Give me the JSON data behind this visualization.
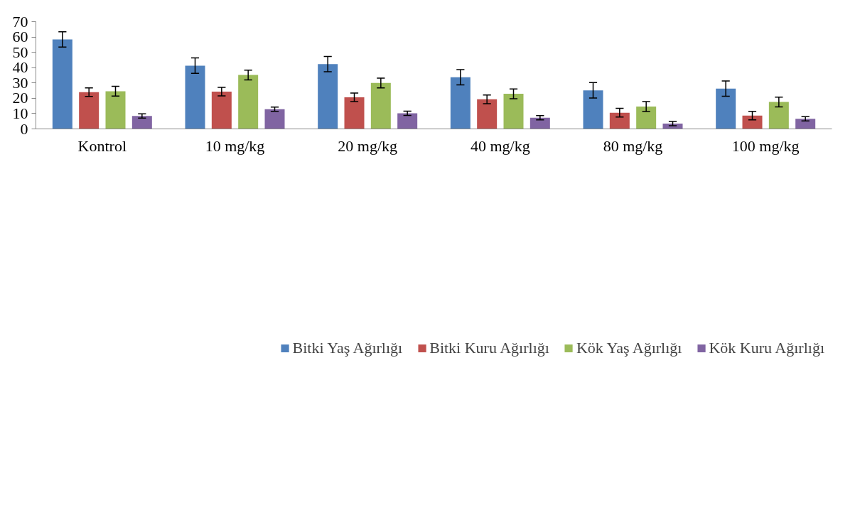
{
  "chart_data": {
    "type": "bar",
    "categories": [
      "Kontrol",
      "10 mg/kg",
      "20 mg/kg",
      "40 mg/kg",
      "80 mg/kg",
      "100 mg/kg"
    ],
    "series": [
      {
        "name": "Bitki Yaş Ağırlığı",
        "color": "#4f81bd",
        "values": [
          58.4,
          41.3,
          42.3,
          33.7,
          25.2,
          26.3
        ],
        "errors": [
          5,
          5,
          5,
          5,
          5,
          5
        ]
      },
      {
        "name": "Bitki Kuru Ağırlığı",
        "color": "#c0504d",
        "values": [
          24.0,
          24.3,
          20.6,
          19.3,
          10.6,
          8.7
        ],
        "errors": [
          2.8,
          2.8,
          2.8,
          2.8,
          2.8,
          2.8
        ]
      },
      {
        "name": "Kök Yaş Ağırlığı",
        "color": "#9bbb59",
        "values": [
          24.6,
          35.2,
          30.0,
          22.9,
          14.6,
          17.6
        ],
        "errors": [
          3.2,
          3.2,
          3.2,
          3.2,
          3.2,
          3.2
        ]
      },
      {
        "name": "Kök Kuru Ağırlığı",
        "color": "#8064a2",
        "values": [
          8.5,
          12.9,
          10.2,
          7.3,
          3.5,
          6.6
        ],
        "errors": [
          1.4,
          1.4,
          1.4,
          1.4,
          1.4,
          1.4
        ]
      }
    ],
    "ylim": [
      0,
      70
    ],
    "yticks": [
      0,
      10,
      20,
      30,
      40,
      50,
      60,
      70
    ],
    "grid": false,
    "legend": "bottom"
  }
}
